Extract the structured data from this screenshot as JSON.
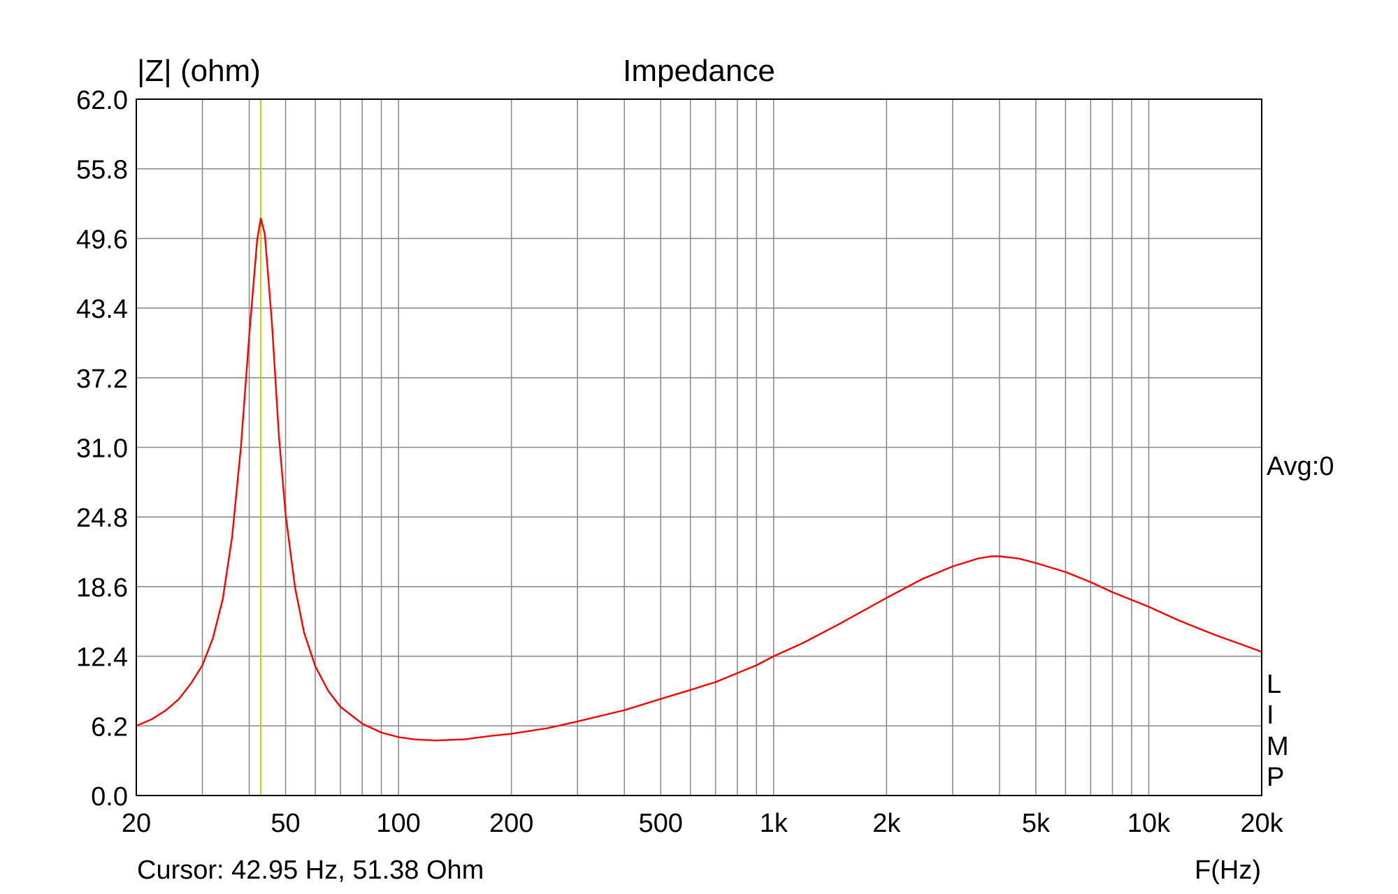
{
  "chart_data": {
    "type": "line",
    "title": "Impedance",
    "ylabel": "|Z| (ohm)",
    "xlabel": "F(Hz)",
    "x_scale": "log",
    "xlim": [
      20,
      20000
    ],
    "ylim": [
      0,
      62
    ],
    "x_ticks": [
      {
        "value": 20,
        "label": "20"
      },
      {
        "value": 50,
        "label": "50"
      },
      {
        "value": 100,
        "label": "100"
      },
      {
        "value": 200,
        "label": "200"
      },
      {
        "value": 500,
        "label": "500"
      },
      {
        "value": 1000,
        "label": "1k"
      },
      {
        "value": 2000,
        "label": "2k"
      },
      {
        "value": 5000,
        "label": "5k"
      },
      {
        "value": 10000,
        "label": "10k"
      },
      {
        "value": 20000,
        "label": "20k"
      }
    ],
    "y_ticks": [
      {
        "value": 62.0,
        "label": "62.0"
      },
      {
        "value": 55.8,
        "label": "55.8"
      },
      {
        "value": 49.6,
        "label": "49.6"
      },
      {
        "value": 43.4,
        "label": "43.4"
      },
      {
        "value": 37.2,
        "label": "37.2"
      },
      {
        "value": 31.0,
        "label": "31.0"
      },
      {
        "value": 24.8,
        "label": "24.8"
      },
      {
        "value": 18.6,
        "label": "18.6"
      },
      {
        "value": 12.4,
        "label": "12.4"
      },
      {
        "value": 6.2,
        "label": "6.2"
      },
      {
        "value": 0.0,
        "label": "0.0"
      }
    ],
    "grid": true,
    "cursor_line": {
      "x": 42.95,
      "color": "#c8c800"
    },
    "series": [
      {
        "color": "#ff0000",
        "points": [
          [
            20,
            6.2
          ],
          [
            22,
            6.8
          ],
          [
            24,
            7.6
          ],
          [
            26,
            8.6
          ],
          [
            28,
            10.0
          ],
          [
            30,
            11.6
          ],
          [
            32,
            14.0
          ],
          [
            34,
            17.5
          ],
          [
            36,
            23.0
          ],
          [
            38,
            31.0
          ],
          [
            40,
            41.0
          ],
          [
            42,
            49.5
          ],
          [
            42.95,
            51.38
          ],
          [
            44,
            50.0
          ],
          [
            46,
            42.0
          ],
          [
            48,
            32.0
          ],
          [
            50,
            25.0
          ],
          [
            53,
            18.5
          ],
          [
            56,
            14.5
          ],
          [
            60,
            11.5
          ],
          [
            65,
            9.3
          ],
          [
            70,
            7.9
          ],
          [
            80,
            6.4
          ],
          [
            90,
            5.6
          ],
          [
            100,
            5.2
          ],
          [
            110,
            5.0
          ],
          [
            125,
            4.9
          ],
          [
            150,
            5.0
          ],
          [
            175,
            5.3
          ],
          [
            200,
            5.5
          ],
          [
            250,
            6.0
          ],
          [
            300,
            6.6
          ],
          [
            400,
            7.6
          ],
          [
            500,
            8.6
          ],
          [
            600,
            9.4
          ],
          [
            700,
            10.1
          ],
          [
            800,
            10.9
          ],
          [
            900,
            11.6
          ],
          [
            1000,
            12.4
          ],
          [
            1200,
            13.6
          ],
          [
            1500,
            15.3
          ],
          [
            2000,
            17.6
          ],
          [
            2500,
            19.3
          ],
          [
            3000,
            20.4
          ],
          [
            3500,
            21.1
          ],
          [
            3800,
            21.3
          ],
          [
            4000,
            21.3
          ],
          [
            4500,
            21.1
          ],
          [
            5000,
            20.7
          ],
          [
            6000,
            19.9
          ],
          [
            7000,
            19.0
          ],
          [
            8000,
            18.1
          ],
          [
            10000,
            16.8
          ],
          [
            12000,
            15.6
          ],
          [
            15000,
            14.3
          ],
          [
            17500,
            13.5
          ],
          [
            20000,
            12.8
          ]
        ]
      }
    ]
  },
  "side_labels": {
    "avg": "Avg:0",
    "limp": [
      "L",
      "I",
      "M",
      "P"
    ]
  },
  "cursor_readout": "Cursor: 42.95 Hz, 51.38 Ohm"
}
